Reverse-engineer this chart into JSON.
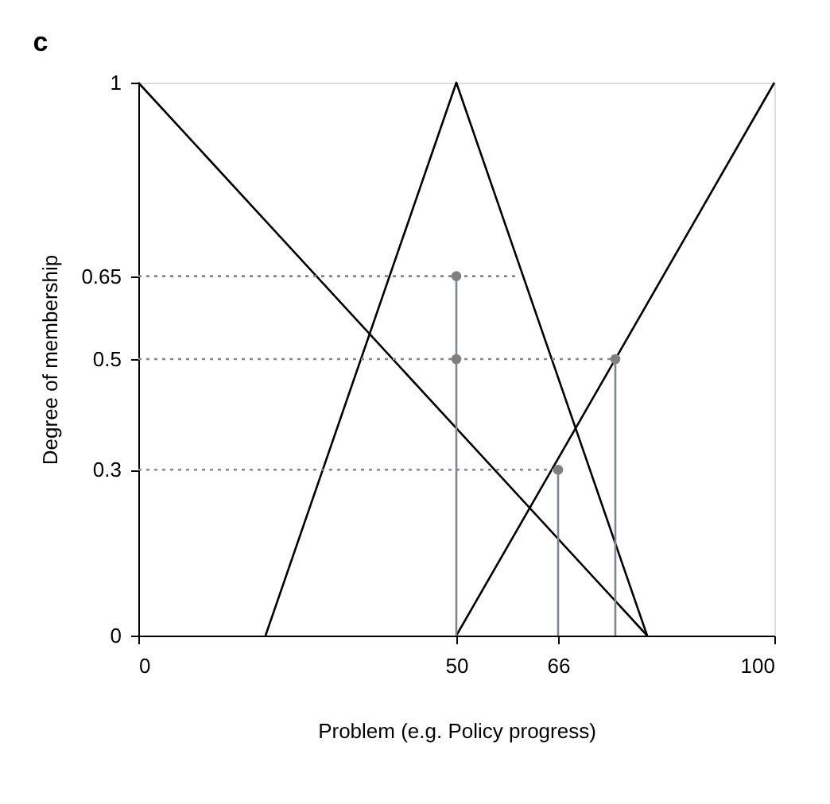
{
  "chart_data": {
    "type": "line",
    "title": "c",
    "xlabel": "Problem (e.g. Policy progress)",
    "ylabel": "Degree of membership",
    "xlim": [
      0,
      100
    ],
    "xticks": [
      0,
      50,
      66,
      100
    ],
    "ylim": [
      0,
      1
    ],
    "yticks": [
      0,
      0.3,
      0.5,
      0.65,
      1
    ],
    "grid": false,
    "series": [
      {
        "color": "#000000",
        "x": [
          0,
          80
        ],
        "values": [
          1,
          0
        ]
      },
      {
        "color": "#000000",
        "x": [
          20,
          50,
          80
        ],
        "values": [
          0,
          1,
          0
        ]
      },
      {
        "color": "#000000",
        "x": [
          50,
          100
        ],
        "values": [
          0,
          1
        ]
      },
      {
        "color": "#888888",
        "x": [
          0,
          60
        ],
        "values": [
          0.65,
          0.65
        ],
        "line_style": "dotted"
      },
      {
        "color": "#888888",
        "x": [
          0,
          75
        ],
        "values": [
          0.5,
          0.5
        ],
        "line_style": "dotted"
      },
      {
        "color": "#888888",
        "x": [
          0,
          66
        ],
        "values": [
          0.3,
          0.3
        ],
        "line_style": "dotted"
      },
      {
        "color": "#7a8894",
        "x": [
          50,
          50
        ],
        "values": [
          0.65,
          0
        ]
      },
      {
        "color": "#7a8894",
        "x": [
          66,
          66
        ],
        "values": [
          0.3,
          0
        ]
      },
      {
        "color": "#7a8894",
        "x": [
          75,
          75
        ],
        "values": [
          0.5,
          0
        ]
      },
      {
        "type": "scatter",
        "marker": "circle",
        "color": "#808080",
        "x": [
          50,
          50,
          66,
          75
        ],
        "values": [
          0.65,
          0.5,
          0.3,
          0.5
        ]
      }
    ]
  }
}
